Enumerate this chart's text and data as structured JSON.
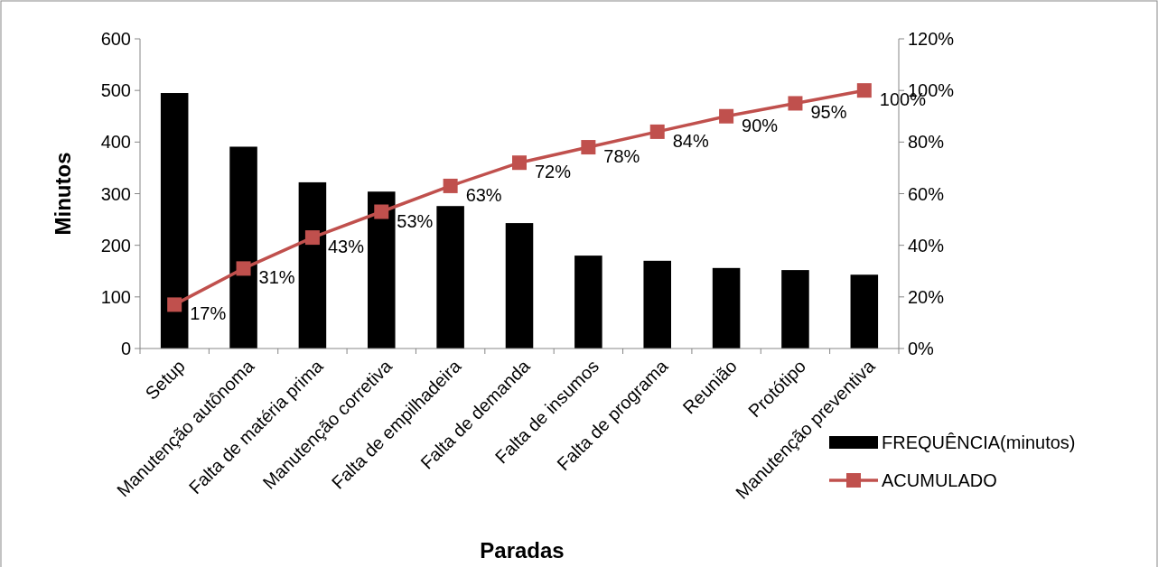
{
  "chart_data": {
    "type": "bar",
    "xlabel": "Paradas",
    "ylabel": "Minutos",
    "categories": [
      "Setup",
      "Manutenção autônoma",
      "Falta de matéria prima",
      "Manutenção corretiva",
      "Falta de empilhadeira",
      "Falta de demanda",
      "Falta de insumos",
      "Falta de programa",
      "Reunião",
      "Protótipo",
      "Manutenção preventiva"
    ],
    "series": [
      {
        "name": "FREQUÊNCIA(minutos)",
        "color": "#000000",
        "values": [
          495,
          391,
          322,
          304,
          276,
          243,
          180,
          170,
          156,
          152,
          143
        ]
      },
      {
        "name": "ACUMULADO",
        "type": "line",
        "axis": "y2",
        "color": "#c0504d",
        "marker": "square",
        "values": [
          17,
          31,
          43,
          53,
          63,
          72,
          78,
          84,
          90,
          95,
          100
        ],
        "value_labels": [
          "17%",
          "31%",
          "43%",
          "53%",
          "63%",
          "72%",
          "78%",
          "84%",
          "90%",
          "95%",
          "100%"
        ]
      }
    ],
    "ylim": [
      0,
      600
    ],
    "yticks": [
      0,
      100,
      200,
      300,
      400,
      500,
      600
    ],
    "y2lim": [
      0,
      120
    ],
    "y2ticks": [
      {
        "value": 0,
        "label": "0%"
      },
      {
        "value": 20,
        "label": "20%"
      },
      {
        "value": 40,
        "label": "40%"
      },
      {
        "value": 60,
        "label": "60%"
      },
      {
        "value": 80,
        "label": "80%"
      },
      {
        "value": 100,
        "label": "100%"
      },
      {
        "value": 120,
        "label": "120%"
      }
    ],
    "legend": "bottom right",
    "grid": false
  }
}
